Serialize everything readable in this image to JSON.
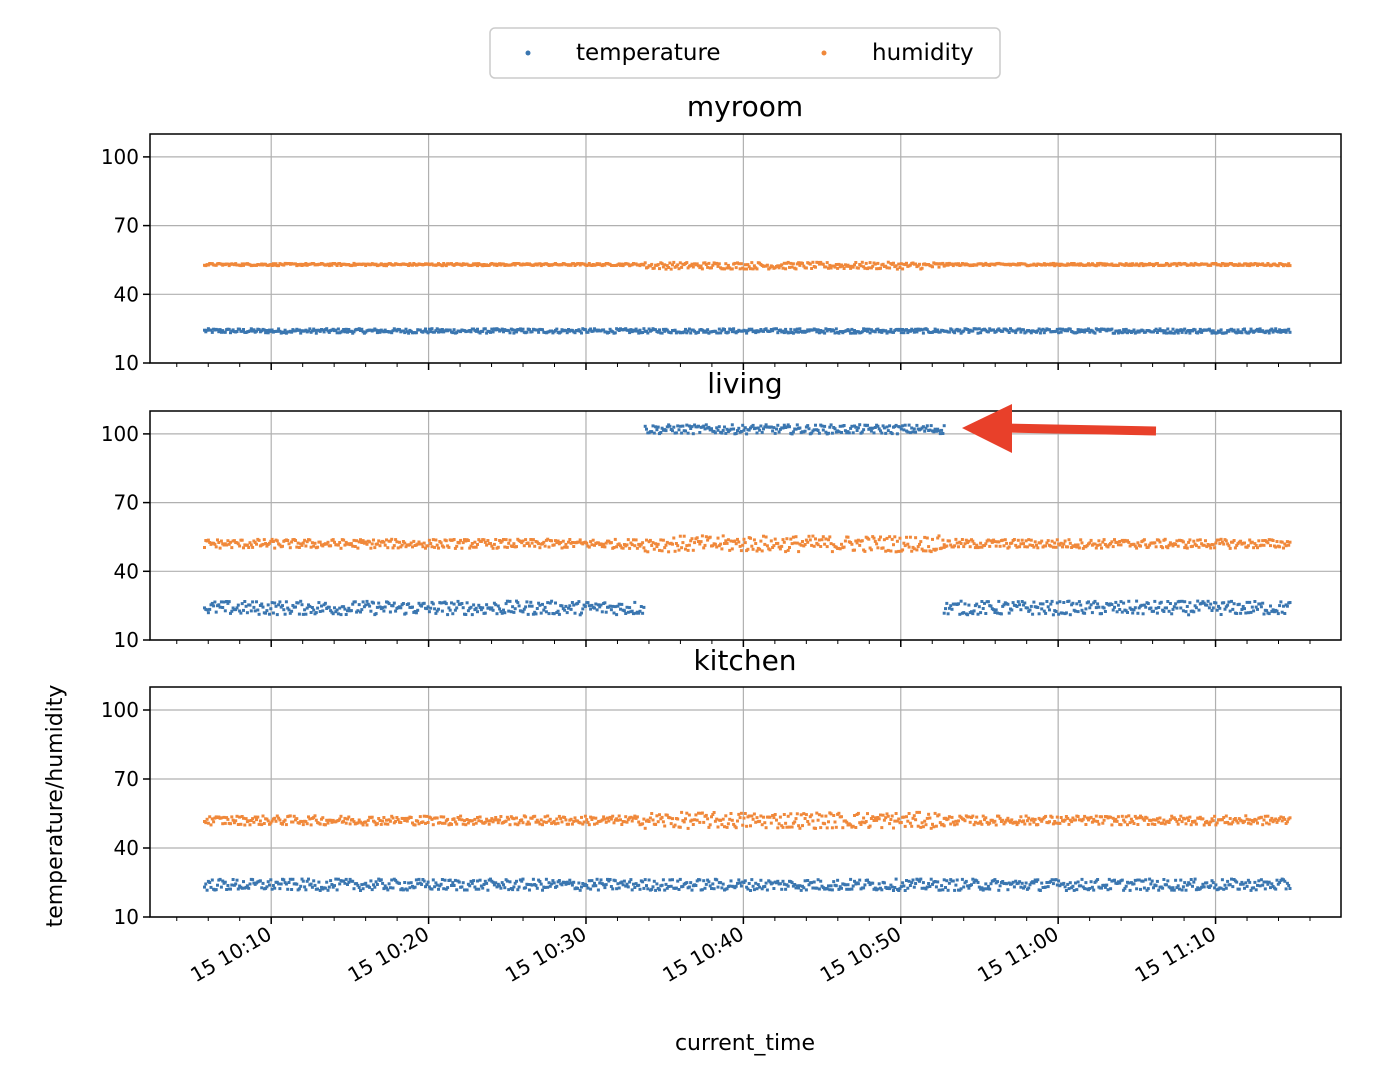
{
  "chart_data": {
    "type": "scatter",
    "legend": {
      "placement": "top-center",
      "entries": [
        {
          "label": "temperature",
          "color": "#3a76b0"
        },
        {
          "label": "humidity",
          "color": "#f0883a"
        }
      ]
    },
    "xlabel": "current_time",
    "ylabel": "temperature/humidity",
    "grid": true,
    "sharex": true,
    "x_range": [
      "15 10:05:40",
      "15 11:14:40"
    ],
    "y_range": [
      10,
      110
    ],
    "y_ticks": [
      10,
      40,
      70,
      100
    ],
    "x_ticks": [
      {
        "time": "15 10:10",
        "minute": 10
      },
      {
        "time": "15 10:20",
        "minute": 20
      },
      {
        "time": "15 10:30",
        "minute": 30
      },
      {
        "time": "15 10:40",
        "minute": 40
      },
      {
        "time": "15 10:50",
        "minute": 50
      },
      {
        "time": "15 11:00",
        "minute": 60
      },
      {
        "time": "15 11:10",
        "minute": 70
      }
    ],
    "subplots": [
      {
        "title": "myroom",
        "series": [
          {
            "name": "temperature",
            "segments": [
              {
                "start": "15 10:05:40",
                "end": "15 11:14:40",
                "value": 24,
                "spread": 1
              }
            ]
          },
          {
            "name": "humidity",
            "segments": [
              {
                "start": "15 10:05:40",
                "end": "15 10:33:40",
                "value": 53,
                "spread": 0.5
              },
              {
                "start": "15 10:33:40",
                "end": "15 10:52:40",
                "value": 52.5,
                "spread": 1.5
              },
              {
                "start": "15 10:52:40",
                "end": "15 11:14:40",
                "value": 53,
                "spread": 0.5
              }
            ]
          }
        ]
      },
      {
        "title": "living",
        "series": [
          {
            "name": "temperature",
            "segments": [
              {
                "start": "15 10:05:40",
                "end": "15 10:33:40",
                "value": 24,
                "spread": 3
              },
              {
                "start": "15 10:33:40",
                "end": "15 10:52:40",
                "value": 102,
                "spread": 2
              },
              {
                "start": "15 10:52:40",
                "end": "15 11:14:40",
                "value": 24,
                "spread": 3
              }
            ]
          },
          {
            "name": "humidity",
            "segments": [
              {
                "start": "15 10:05:40",
                "end": "15 10:33:40",
                "value": 52,
                "spread": 2
              },
              {
                "start": "15 10:33:40",
                "end": "15 10:52:40",
                "value": 52,
                "spread": 3.5
              },
              {
                "start": "15 10:52:40",
                "end": "15 11:14:40",
                "value": 52,
                "spread": 2
              }
            ]
          }
        ]
      },
      {
        "title": "kitchen",
        "series": [
          {
            "name": "temperature",
            "segments": [
              {
                "start": "15 10:05:40",
                "end": "15 11:14:40",
                "value": 24,
                "spread": 2.5
              }
            ]
          },
          {
            "name": "humidity",
            "segments": [
              {
                "start": "15 10:05:40",
                "end": "15 10:33:40",
                "value": 52,
                "spread": 2
              },
              {
                "start": "15 10:33:40",
                "end": "15 10:52:40",
                "value": 52,
                "spread": 3.5
              },
              {
                "start": "15 10:52:40",
                "end": "15 11:14:40",
                "value": 52,
                "spread": 2
              }
            ]
          }
        ]
      }
    ],
    "annotation": {
      "type": "arrow",
      "color": "#e8402a",
      "subplot": "living",
      "points_to": "temperature segment near 102"
    }
  }
}
